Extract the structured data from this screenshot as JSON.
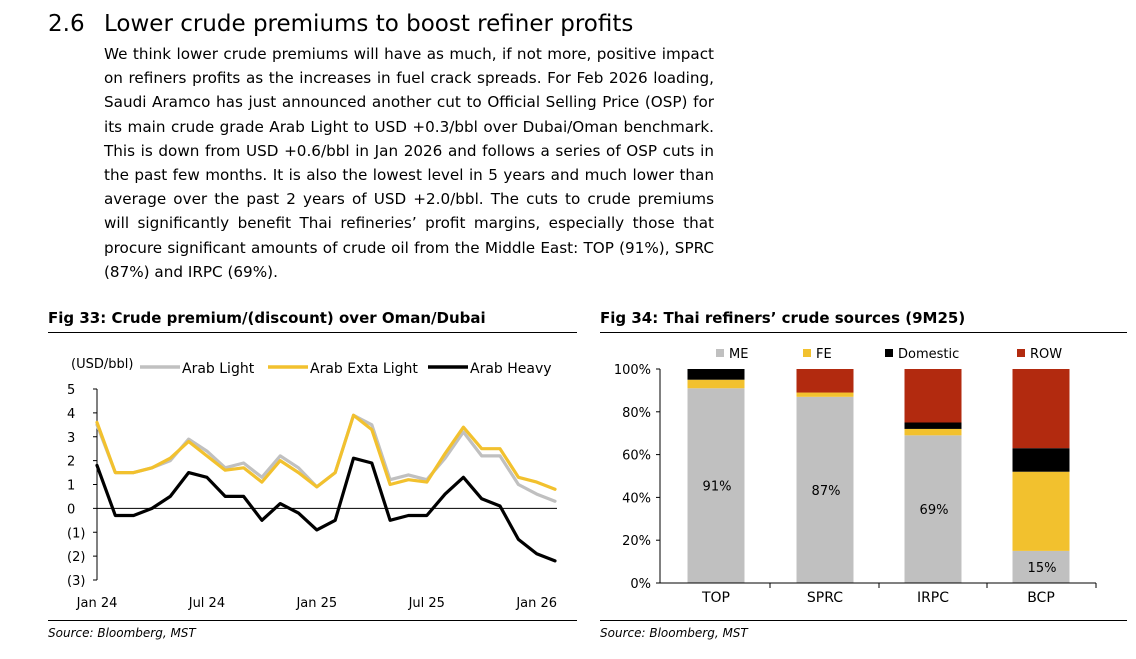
{
  "section": {
    "number": "2.6",
    "title": "Lower crude premiums to boost refiner profits",
    "paragraph": "We think lower crude premiums will have as much, if not more, positive impact on refiners profits as the increases in fuel crack spreads. For Feb 2026 loading, Saudi Aramco has just announced another cut to Official Selling Price (OSP) for its main crude grade Arab Light to USD +0.3/bbl over Dubai/Oman benchmark. This is down from USD +0.6/bbl in Jan 2026 and follows a series of OSP cuts in the past few months. It is also the lowest level in 5 years and much lower than average over the past 2 years of USD +2.0/bbl. The cuts to crude premiums will significantly benefit Thai refineries’ profit margins, especially those that procure significant amounts of crude oil from the Middle East: TOP (91%), SPRC (87%) and IRPC (69%)."
  },
  "fig33": {
    "title": "Fig 33: Crude premium/(discount) over Oman/Dubai",
    "source": "Source: Bloomberg, MST"
  },
  "fig34": {
    "title": "Fig 34: Thai refiners’ crude sources (9M25)",
    "source": "Source: Bloomberg, MST"
  },
  "chart_data": [
    {
      "type": "line",
      "title": "Fig 33: Crude premium/(discount) over Oman/Dubai",
      "ylabel": "(USD/bbl)",
      "ylim": [
        -3,
        5
      ],
      "yticks": [
        5,
        4,
        3,
        2,
        1,
        0,
        -1,
        -2,
        -3
      ],
      "ytick_labels": [
        "5",
        "4",
        "3",
        "2",
        "1",
        "0",
        "(1)",
        "(2)",
        "(3)"
      ],
      "x_labels": [
        "Jan 24",
        "Jul 24",
        "Jan 25",
        "Jul 25",
        "Jan 26"
      ],
      "x_label_index": [
        0,
        6,
        12,
        18,
        24
      ],
      "x": [
        "Jan 24",
        "Feb 24",
        "Mar 24",
        "Apr 24",
        "May 24",
        "Jun 24",
        "Jul 24",
        "Aug 24",
        "Sep 24",
        "Oct 24",
        "Nov 24",
        "Dec 24",
        "Jan 25",
        "Feb 25",
        "Mar 25",
        "Apr 25",
        "May 25",
        "Jun 25",
        "Jul 25",
        "Aug 25",
        "Sep 25",
        "Oct 25",
        "Nov 25",
        "Dec 25",
        "Jan 26",
        "Feb 26"
      ],
      "series": [
        {
          "name": "Arab Light",
          "color": "#c0c0c0",
          "values": [
            3.5,
            1.5,
            1.5,
            1.7,
            2.0,
            2.9,
            2.4,
            1.7,
            1.9,
            1.3,
            2.2,
            1.7,
            0.9,
            1.5,
            3.9,
            3.5,
            1.2,
            1.4,
            1.2,
            2.1,
            3.2,
            2.2,
            2.2,
            1.0,
            0.6,
            0.3
          ]
        },
        {
          "name": "Arab Exta Light",
          "color": "#f2c12e",
          "values": [
            3.6,
            1.5,
            1.5,
            1.7,
            2.1,
            2.8,
            2.2,
            1.6,
            1.7,
            1.1,
            2.0,
            1.5,
            0.9,
            1.5,
            3.9,
            3.3,
            1.0,
            1.2,
            1.1,
            2.3,
            3.4,
            2.5,
            2.5,
            1.3,
            1.1,
            0.8
          ]
        },
        {
          "name": "Arab Heavy",
          "color": "#000000",
          "values": [
            1.8,
            -0.3,
            -0.3,
            0.0,
            0.5,
            1.5,
            1.3,
            0.5,
            0.5,
            -0.5,
            0.2,
            -0.2,
            -0.9,
            -0.5,
            2.1,
            1.9,
            -0.5,
            -0.3,
            -0.3,
            0.6,
            1.3,
            0.4,
            0.1,
            -1.3,
            -1.9,
            -2.2
          ]
        }
      ]
    },
    {
      "type": "bar",
      "stacked": true,
      "title": "Fig 34: Thai refiners’ crude sources (9M25)",
      "categories": [
        "TOP",
        "SPRC",
        "IRPC",
        "BCP"
      ],
      "ylim": [
        0,
        100
      ],
      "yticks": [
        0,
        20,
        40,
        60,
        80,
        100
      ],
      "ytick_labels": [
        "0%",
        "20%",
        "40%",
        "60%",
        "80%",
        "100%"
      ],
      "series": [
        {
          "name": "ME",
          "color": "#c0c0c0",
          "values": [
            91,
            87,
            69,
            15
          ],
          "labels": [
            "91%",
            "87%",
            "69%",
            "15%"
          ]
        },
        {
          "name": "FE",
          "color": "#f2c12e",
          "values": [
            4,
            2,
            3,
            37
          ]
        },
        {
          "name": "Domestic",
          "color": "#000000",
          "values": [
            5,
            0,
            3,
            11
          ]
        },
        {
          "name": "ROW",
          "color": "#b22a0f",
          "values": [
            0,
            11,
            25,
            37
          ]
        }
      ]
    }
  ]
}
